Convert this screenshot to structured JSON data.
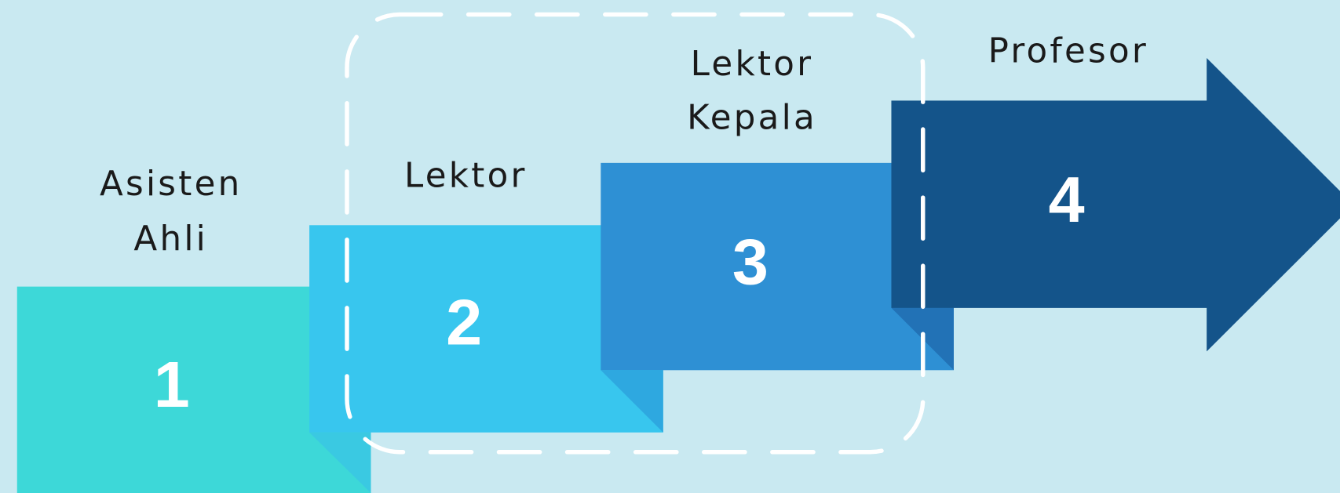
{
  "steps": [
    {
      "number": 1,
      "label_lines": [
        "Asisten",
        "Ahli"
      ]
    },
    {
      "number": 2,
      "label_lines": [
        "Lektor"
      ]
    },
    {
      "number": 3,
      "label_lines": [
        "Lektor",
        "Kepala"
      ]
    },
    {
      "number": 4,
      "label_lines": [
        "Profesor"
      ]
    }
  ]
}
